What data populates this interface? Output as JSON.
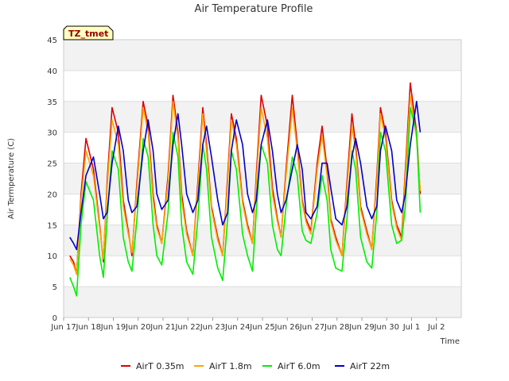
{
  "chart_data": {
    "type": "line",
    "title": "Air Temperature Profile",
    "xlabel": "Time",
    "ylabel": "Air Termperature (C)",
    "badge": "TZ_tmet",
    "ylim": [
      0,
      45
    ],
    "xlim": [
      0,
      16
    ],
    "y_ticks": [
      0,
      5,
      10,
      15,
      20,
      25,
      30,
      35,
      40,
      45
    ],
    "x_ticks": [
      {
        "value": 0,
        "label": "Jun 17"
      },
      {
        "value": 1,
        "label": "Jun 18"
      },
      {
        "value": 2,
        "label": "Jun 19"
      },
      {
        "value": 3,
        "label": "Jun 20"
      },
      {
        "value": 4,
        "label": "Jun 21"
      },
      {
        "value": 5,
        "label": "Jun 22"
      },
      {
        "value": 6,
        "label": "Jun 23"
      },
      {
        "value": 7,
        "label": "Jun 24"
      },
      {
        "value": 8,
        "label": "Jun 25"
      },
      {
        "value": 9,
        "label": "Jun 26"
      },
      {
        "value": 10,
        "label": "Jun 27"
      },
      {
        "value": 11,
        "label": "Jun 28"
      },
      {
        "value": 12,
        "label": "Jun 29"
      },
      {
        "value": 13,
        "label": "Jun 30"
      },
      {
        "value": 14,
        "label": "Jul 1"
      },
      {
        "value": 15,
        "label": "Jul 2"
      }
    ],
    "grid": true,
    "legend_position": "bottom",
    "series": [
      {
        "name": "AirT 0.35m",
        "color": "#dd0000",
        "x": [
          0.25,
          0.4,
          0.52,
          0.7,
          0.9,
          1.2,
          1.45,
          1.6,
          1.75,
          1.95,
          2.2,
          2.4,
          2.6,
          2.75,
          2.95,
          3.2,
          3.4,
          3.6,
          3.75,
          3.95,
          4.2,
          4.4,
          4.6,
          4.75,
          4.95,
          5.2,
          5.4,
          5.6,
          5.75,
          5.95,
          6.2,
          6.4,
          6.6,
          6.75,
          6.95,
          7.2,
          7.4,
          7.6,
          7.75,
          7.95,
          8.2,
          8.4,
          8.6,
          8.75,
          8.95,
          9.2,
          9.4,
          9.6,
          9.75,
          9.95,
          10.2,
          10.4,
          10.6,
          10.75,
          10.95,
          11.2,
          11.4,
          11.6,
          11.75,
          11.95,
          12.2,
          12.4,
          12.6,
          12.75,
          12.95,
          13.2,
          13.4,
          13.6,
          13.75,
          13.95,
          14.2,
          14.35
        ],
        "y": [
          10,
          9,
          7,
          20,
          29,
          24,
          15,
          9,
          22,
          34,
          30,
          19,
          14,
          10,
          22,
          35,
          31,
          20,
          15,
          12,
          23,
          36,
          30,
          20,
          14,
          10,
          22,
          34,
          28,
          18,
          13,
          10,
          23,
          33,
          29,
          19,
          15,
          12,
          23,
          36,
          31,
          21,
          16,
          13,
          24,
          36,
          28,
          19,
          16,
          14,
          25,
          31,
          24,
          16,
          13,
          10,
          22,
          33,
          28,
          18,
          14,
          11,
          23,
          34,
          30,
          19,
          15,
          13,
          24,
          38,
          30,
          20
        ]
      },
      {
        "name": "AirT 1.8m",
        "color": "#ffa500",
        "x": [
          0.25,
          0.4,
          0.52,
          0.7,
          0.9,
          1.2,
          1.45,
          1.6,
          1.75,
          1.95,
          2.2,
          2.4,
          2.6,
          2.75,
          2.95,
          3.2,
          3.4,
          3.6,
          3.75,
          3.95,
          4.2,
          4.4,
          4.6,
          4.75,
          4.95,
          5.2,
          5.4,
          5.6,
          5.75,
          5.95,
          6.2,
          6.4,
          6.6,
          6.75,
          6.95,
          7.2,
          7.4,
          7.6,
          7.75,
          7.95,
          8.2,
          8.4,
          8.6,
          8.75,
          8.95,
          9.2,
          9.4,
          9.6,
          9.75,
          9.95,
          10.2,
          10.4,
          10.6,
          10.75,
          10.95,
          11.2,
          11.4,
          11.6,
          11.75,
          11.95,
          12.2,
          12.4,
          12.6,
          12.75,
          12.95,
          13.2,
          13.4,
          13.6,
          13.75,
          13.95,
          14.2,
          14.35
        ],
        "y": [
          9.5,
          8.5,
          7,
          19,
          27,
          23,
          14.5,
          9.5,
          21,
          32,
          28,
          18,
          13.5,
          10.5,
          21,
          34,
          30,
          19,
          14.5,
          12,
          22,
          35,
          29,
          19,
          13.5,
          10,
          21,
          33,
          27,
          17.5,
          12.5,
          10,
          22,
          32,
          28,
          18.5,
          14.5,
          12,
          22,
          34,
          29,
          20,
          15.5,
          13,
          23,
          34,
          27,
          18.5,
          15.5,
          13.5,
          24,
          29.5,
          23,
          15.5,
          12.5,
          10,
          21,
          31,
          27,
          17.5,
          13.5,
          11,
          22,
          33,
          29,
          18.5,
          14.5,
          12.5,
          23,
          36,
          29,
          20.5
        ]
      },
      {
        "name": "AirT 6.0m",
        "color": "#00ee00",
        "x": [
          0.25,
          0.4,
          0.52,
          0.7,
          0.9,
          1.2,
          1.45,
          1.6,
          1.75,
          1.95,
          2.2,
          2.4,
          2.6,
          2.75,
          2.95,
          3.2,
          3.4,
          3.6,
          3.75,
          3.95,
          4.2,
          4.4,
          4.6,
          4.75,
          4.95,
          5.2,
          5.4,
          5.6,
          5.75,
          5.95,
          6.2,
          6.4,
          6.6,
          6.75,
          6.95,
          7.2,
          7.4,
          7.6,
          7.75,
          7.95,
          8.2,
          8.4,
          8.6,
          8.75,
          8.95,
          9.2,
          9.4,
          9.6,
          9.75,
          9.95,
          10.2,
          10.4,
          10.6,
          10.75,
          10.95,
          11.2,
          11.4,
          11.6,
          11.75,
          11.95,
          12.2,
          12.4,
          12.6,
          12.75,
          12.95,
          13.2,
          13.4,
          13.6,
          13.75,
          13.95,
          14.2,
          14.35
        ],
        "y": [
          6.5,
          5,
          3.5,
          15,
          22,
          19,
          10,
          6.5,
          16,
          27,
          24,
          13,
          9,
          7.5,
          16,
          29,
          26,
          15,
          10,
          8.5,
          17,
          30,
          26,
          15,
          9,
          7,
          16,
          28,
          24,
          13,
          8,
          6,
          16,
          27,
          24,
          13.5,
          10,
          7.5,
          17,
          28,
          25,
          15,
          11,
          10,
          18,
          26,
          23,
          14,
          12.5,
          12,
          17,
          23,
          19,
          11,
          8,
          7.5,
          16,
          27,
          24,
          13,
          9,
          8,
          17,
          30,
          27,
          15,
          12,
          12.5,
          18,
          34,
          30,
          17
        ]
      },
      {
        "name": "AirT 22m",
        "color": "#0000cc",
        "x": [
          0.25,
          0.4,
          0.52,
          0.7,
          0.9,
          1.2,
          1.45,
          1.6,
          1.75,
          1.95,
          2.2,
          2.4,
          2.6,
          2.75,
          2.95,
          3.2,
          3.4,
          3.6,
          3.75,
          3.95,
          4.2,
          4.4,
          4.6,
          4.75,
          4.95,
          5.2,
          5.4,
          5.6,
          5.75,
          5.95,
          6.2,
          6.4,
          6.6,
          6.75,
          6.95,
          7.2,
          7.4,
          7.6,
          7.75,
          7.95,
          8.2,
          8.4,
          8.6,
          8.75,
          8.95,
          9.2,
          9.4,
          9.6,
          9.75,
          9.95,
          10.2,
          10.4,
          10.6,
          10.75,
          10.95,
          11.2,
          11.4,
          11.6,
          11.75,
          11.95,
          12.2,
          12.4,
          12.6,
          12.75,
          12.95,
          13.2,
          13.4,
          13.6,
          13.75,
          13.95,
          14.2,
          14.35
        ],
        "y": [
          13,
          12,
          11,
          17,
          23,
          26,
          20,
          16,
          17,
          25,
          31,
          27,
          19,
          17,
          18,
          27,
          32,
          27,
          20,
          17.5,
          19,
          28,
          33,
          28,
          20,
          17,
          19,
          28,
          31,
          26,
          19,
          15,
          17,
          27,
          32,
          28,
          20,
          17,
          19,
          28,
          32,
          27,
          20,
          17,
          19,
          24,
          28,
          24,
          17,
          16,
          18,
          25,
          25,
          21,
          16,
          15,
          18,
          26,
          29,
          25,
          18,
          16,
          18,
          27,
          31,
          27,
          19,
          17,
          20,
          28,
          35,
          30
        ]
      }
    ]
  }
}
